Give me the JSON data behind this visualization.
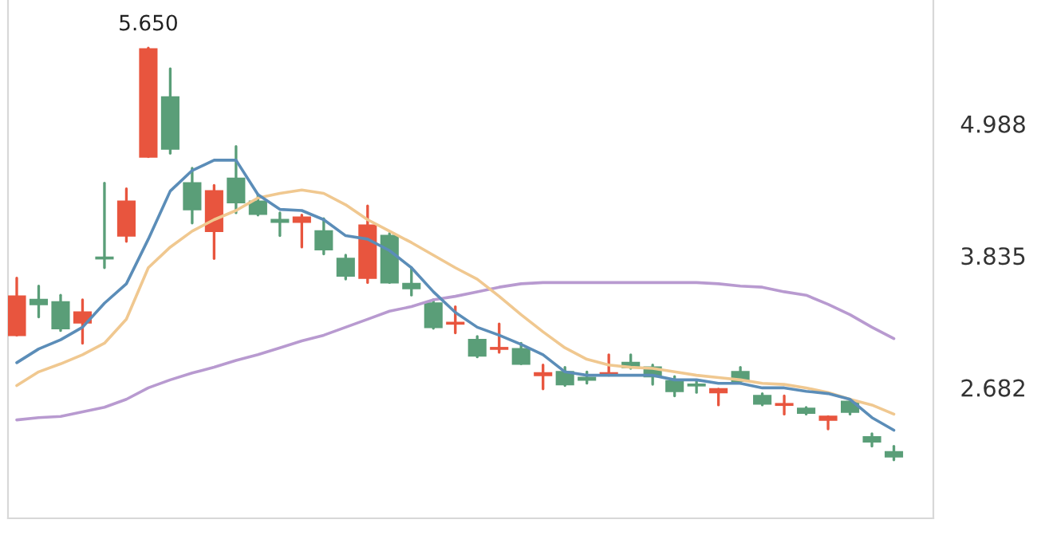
{
  "chart_data": {
    "type": "candlestick",
    "categories": [
      null,
      null,
      null,
      null,
      null,
      null,
      null,
      null,
      null,
      null,
      null,
      null,
      null,
      null,
      null,
      null,
      null,
      null,
      null,
      null,
      null,
      null,
      null,
      null,
      null,
      null,
      null,
      null,
      null,
      null,
      null,
      null,
      null,
      null,
      null,
      null,
      null,
      null,
      null,
      null,
      null
    ],
    "ohlc": [
      [
        3.14,
        3.64,
        3.14,
        3.48
      ],
      [
        3.45,
        3.57,
        3.3,
        3.41
      ],
      [
        3.43,
        3.49,
        3.18,
        3.2
      ],
      [
        3.25,
        3.45,
        3.07,
        3.34
      ],
      [
        3.82,
        4.47,
        3.73,
        3.81
      ],
      [
        4.01,
        4.42,
        3.96,
        4.31
      ],
      [
        4.7,
        5.65,
        4.7,
        5.64
      ],
      [
        5.22,
        5.47,
        4.73,
        4.77
      ],
      [
        4.47,
        4.6,
        4.12,
        4.24
      ],
      [
        4.05,
        4.45,
        3.81,
        4.4
      ],
      [
        4.51,
        4.79,
        4.21,
        4.3
      ],
      [
        4.31,
        4.37,
        4.19,
        4.2
      ],
      [
        4.15,
        4.21,
        4.01,
        4.13
      ],
      [
        4.13,
        4.19,
        3.91,
        4.17
      ],
      [
        4.05,
        4.16,
        3.85,
        3.89
      ],
      [
        3.81,
        3.84,
        3.63,
        3.66
      ],
      [
        3.64,
        4.27,
        3.6,
        4.1
      ],
      [
        4.01,
        4.03,
        3.6,
        3.6
      ],
      [
        3.59,
        3.73,
        3.49,
        3.55
      ],
      [
        3.42,
        3.45,
        3.2,
        3.21
      ],
      [
        3.24,
        3.39,
        3.16,
        3.25
      ],
      [
        3.1,
        3.13,
        2.95,
        2.96
      ],
      [
        3.02,
        3.24,
        2.99,
        3.03
      ],
      [
        3.02,
        3.07,
        2.89,
        2.89
      ],
      [
        2.79,
        2.88,
        2.67,
        2.81
      ],
      [
        2.82,
        2.86,
        2.7,
        2.71
      ],
      [
        2.77,
        2.82,
        2.72,
        2.75
      ],
      [
        2.79,
        2.97,
        2.79,
        2.81
      ],
      [
        2.9,
        2.97,
        2.85,
        2.86
      ],
      [
        2.86,
        2.88,
        2.71,
        2.78
      ],
      [
        2.74,
        2.78,
        2.61,
        2.65
      ],
      [
        2.71,
        2.74,
        2.64,
        2.7
      ],
      [
        2.64,
        2.67,
        2.53,
        2.67
      ],
      [
        2.82,
        2.86,
        2.72,
        2.74
      ],
      [
        2.61,
        2.63,
        2.53,
        2.54
      ],
      [
        2.53,
        2.61,
        2.45,
        2.54
      ],
      [
        2.5,
        2.51,
        2.45,
        2.46
      ],
      [
        2.4,
        2.43,
        2.32,
        2.43
      ],
      [
        2.56,
        2.57,
        2.45,
        2.47
      ],
      [
        2.25,
        2.28,
        2.17,
        2.21
      ],
      [
        2.12,
        2.17,
        2.05,
        2.08
      ]
    ],
    "colors": [
      "#e8553e",
      "#5a9e78",
      "#5a9e78",
      "#e8553e",
      "#5a9e78",
      "#e8553e",
      "#e8553e",
      "#5a9e78",
      "#5a9e78",
      "#e8553e",
      "#5a9e78",
      "#5a9e78",
      "#5a9e78",
      "#e8553e",
      "#5a9e78",
      "#5a9e78",
      "#e8553e",
      "#5a9e78",
      "#5a9e78",
      "#5a9e78",
      "#e8553e",
      "#5a9e78",
      "#e8553e",
      "#5a9e78",
      "#e8553e",
      "#5a9e78",
      "#5a9e78",
      "#e8553e",
      "#5a9e78",
      "#5a9e78",
      "#5a9e78",
      "#5a9e78",
      "#e8553e",
      "#5a9e78",
      "#5a9e78",
      "#e8553e",
      "#5a9e78",
      "#e8553e",
      "#5a9e78",
      "#5a9e78",
      "#5a9e78"
    ],
    "series": [
      {
        "type": "line",
        "color": "#b89ad0",
        "values": [
          2.4,
          2.42,
          2.43,
          2.47,
          2.51,
          2.58,
          2.68,
          2.75,
          2.81,
          2.86,
          2.92,
          2.97,
          3.03,
          3.09,
          3.14,
          3.21,
          3.28,
          3.35,
          3.39,
          3.45,
          3.48,
          3.52,
          3.56,
          3.59,
          3.6,
          3.6,
          3.6,
          3.6,
          3.6,
          3.6,
          3.6,
          3.6,
          3.59,
          3.57,
          3.56,
          3.52,
          3.49,
          3.41,
          3.32,
          3.21,
          3.11
        ]
      },
      {
        "type": "line",
        "color": "#f0c890",
        "values": [
          2.7,
          2.82,
          2.89,
          2.97,
          3.07,
          3.28,
          3.73,
          3.91,
          4.05,
          4.15,
          4.23,
          4.34,
          4.38,
          4.41,
          4.38,
          4.28,
          4.15,
          4.05,
          3.95,
          3.84,
          3.73,
          3.63,
          3.48,
          3.32,
          3.17,
          3.03,
          2.93,
          2.88,
          2.86,
          2.85,
          2.82,
          2.79,
          2.77,
          2.75,
          2.72,
          2.71,
          2.68,
          2.64,
          2.58,
          2.53,
          2.45
        ]
      },
      {
        "type": "line",
        "color": "#5b8db8",
        "values": [
          2.9,
          3.02,
          3.1,
          3.21,
          3.42,
          3.59,
          3.98,
          4.4,
          4.58,
          4.67,
          4.67,
          4.37,
          4.24,
          4.23,
          4.15,
          4.01,
          3.98,
          3.88,
          3.73,
          3.52,
          3.34,
          3.21,
          3.14,
          3.06,
          2.97,
          2.82,
          2.79,
          2.79,
          2.79,
          2.79,
          2.75,
          2.75,
          2.72,
          2.72,
          2.68,
          2.68,
          2.65,
          2.63,
          2.58,
          2.42,
          2.31
        ]
      }
    ],
    "ylim": [
      1.54,
      6.07
    ],
    "yticks": [
      2.682,
      3.835,
      4.988
    ],
    "annotations": [
      {
        "text": "5.650",
        "y": 5.65
      }
    ]
  }
}
